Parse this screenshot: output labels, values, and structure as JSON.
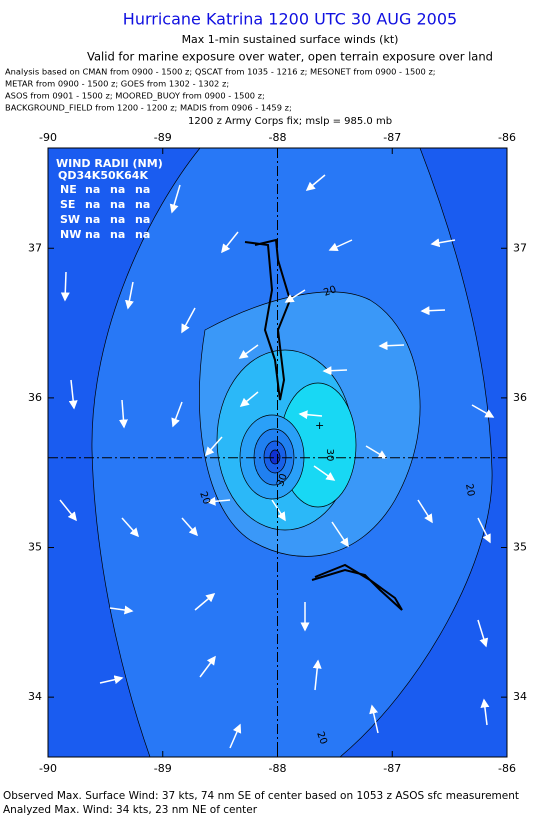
{
  "header": {
    "title": "Hurricane Katrina 1200 UTC 30 AUG 2005",
    "subtitle": "Max 1-min sustained surface winds (kt)",
    "valid": "Valid for marine exposure over water, open terrain exposure over land",
    "analysis_lines": [
      "Analysis based on  CMAN from 0900 - 1500 z;  QSCAT from 1035 - 1216 z;  MESONET from 0900 - 1500 z;",
      "METAR from 0900 - 1500 z;  GOES from 1302 - 1302 z;",
      "ASOS from 0901 - 1500 z;  MOORED_BUOY from 0900 - 1500 z;",
      "BACKGROUND_FIELD from 1200 - 1200 z;  MADIS from 0906 - 1459 z;"
    ],
    "fix": "1200 z Army Corps fix; mslp = 985.0 mb"
  },
  "map": {
    "xlim": [
      -90,
      -86
    ],
    "ylim": [
      33.6,
      37.67
    ],
    "xticks": [
      -90,
      -89,
      -88,
      -87,
      -86
    ],
    "yticks": [
      34,
      35,
      36,
      37
    ],
    "center": [
      -88,
      35.6
    ],
    "contour_labels": [
      20,
      20,
      20,
      20,
      30,
      30
    ]
  },
  "wind_radii": {
    "title": "WIND RADII (NM)",
    "header": "QD34K50K64K",
    "rows": [
      [
        "NE",
        "na",
        "na",
        "na"
      ],
      [
        "SE",
        "na",
        "na",
        "na"
      ],
      [
        "SW",
        "na",
        "na",
        "na"
      ],
      [
        "NW",
        "na",
        "na",
        "na"
      ]
    ]
  },
  "footer": [
    "Observed Max. Surface Wind: 37 kts, 74 nm SE of center based on 1053 z ASOS sfc measurement",
    "Analyzed Max. Wind: 34 kts, 23 nm NE of center"
  ]
}
